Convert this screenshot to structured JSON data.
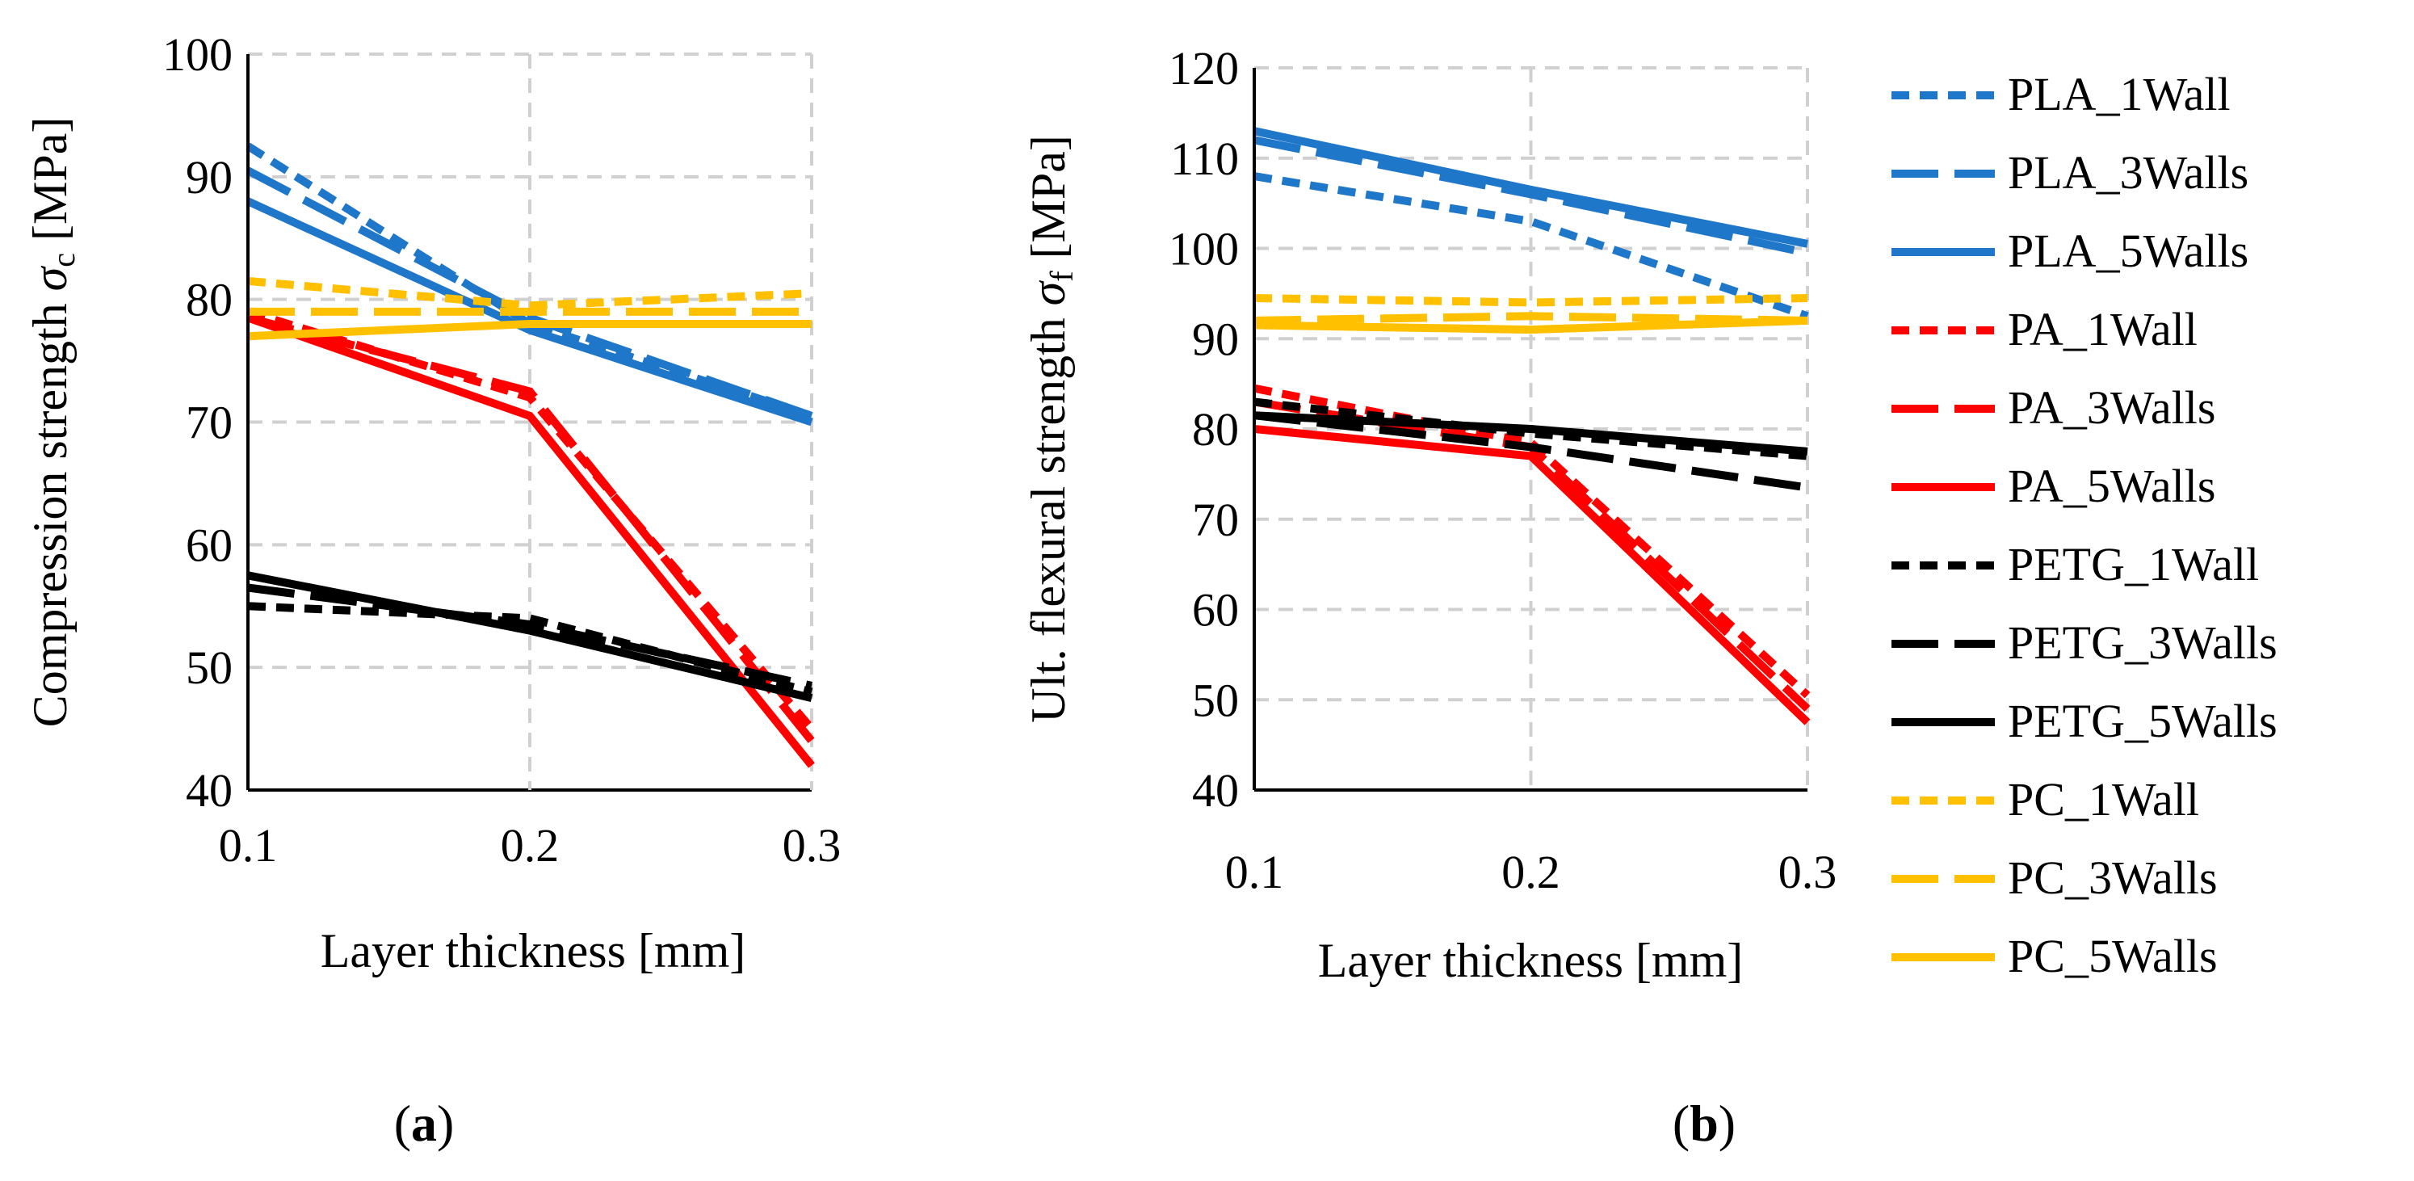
{
  "styles": {
    "series": {
      "PLA_1Wall": {
        "color": "#1f77c9",
        "dash": "short"
      },
      "PLA_3Walls": {
        "color": "#1f77c9",
        "dash": "long"
      },
      "PLA_5Walls": {
        "color": "#1f77c9",
        "dash": "solid"
      },
      "PA_1Wall": {
        "color": "#ff0000",
        "dash": "short"
      },
      "PA_3Walls": {
        "color": "#ff0000",
        "dash": "long"
      },
      "PA_5Walls": {
        "color": "#ff0000",
        "dash": "solid"
      },
      "PETG_1Wall": {
        "color": "#000000",
        "dash": "short"
      },
      "PETG_3Walls": {
        "color": "#000000",
        "dash": "long"
      },
      "PETG_5Walls": {
        "color": "#000000",
        "dash": "solid"
      },
      "PC_1Wall": {
        "color": "#ffc000",
        "dash": "short"
      },
      "PC_3Walls": {
        "color": "#ffc000",
        "dash": "long"
      },
      "PC_5Walls": {
        "color": "#ffc000",
        "dash": "solid"
      }
    }
  },
  "legend": {
    "entries": [
      "PLA_1Wall",
      "PLA_3Walls",
      "PLA_5Walls",
      "PA_1Wall",
      "PA_3Walls",
      "PA_5Walls",
      "PETG_1Wall",
      "PETG_3Walls",
      "PETG_5Walls",
      "PC_1Wall",
      "PC_3Walls",
      "PC_5Walls"
    ]
  },
  "chart_data": [
    {
      "type": "line",
      "panel_label": {
        "open": "(",
        "letter": "a",
        "close": ")"
      },
      "xlabel": "Layer thickness [mm]",
      "ylabel": {
        "prefix": "Compression strength ",
        "symbol": "σ",
        "sub": "c",
        "suffix": " [MPa]"
      },
      "x": [
        0.1,
        0.2,
        0.3
      ],
      "xticks": [
        "0.1",
        "0.2",
        "0.3"
      ],
      "ylim": [
        40,
        100
      ],
      "yticks": [
        40,
        50,
        60,
        70,
        80,
        90,
        100
      ],
      "grid": true,
      "series": [
        {
          "name": "PLA_1Wall",
          "values": [
            92.5,
            78.0,
            70.5
          ]
        },
        {
          "name": "PLA_3Walls",
          "values": [
            90.5,
            78.5,
            70.5
          ]
        },
        {
          "name": "PLA_5Walls",
          "values": [
            88.0,
            77.5,
            70.0
          ]
        },
        {
          "name": "PA_1Wall",
          "values": [
            79.0,
            72.0,
            45.0
          ]
        },
        {
          "name": "PA_3Walls",
          "values": [
            78.5,
            72.5,
            44.0
          ]
        },
        {
          "name": "PA_5Walls",
          "values": [
            78.5,
            70.5,
            42.0
          ]
        },
        {
          "name": "PETG_1Wall",
          "values": [
            55.0,
            54.0,
            48.0
          ]
        },
        {
          "name": "PETG_3Walls",
          "values": [
            56.5,
            53.5,
            48.5
          ]
        },
        {
          "name": "PETG_5Walls",
          "values": [
            57.5,
            53.0,
            47.5
          ]
        },
        {
          "name": "PC_1Wall",
          "values": [
            81.5,
            79.5,
            80.5
          ]
        },
        {
          "name": "PC_3Walls",
          "values": [
            79.0,
            79.0,
            79.0
          ]
        },
        {
          "name": "PC_5Walls",
          "values": [
            77.0,
            78.0,
            78.0
          ]
        }
      ]
    },
    {
      "type": "line",
      "panel_label": {
        "open": "(",
        "letter": "b",
        "close": ")"
      },
      "xlabel": "Layer thickness [mm]",
      "ylabel": {
        "prefix": "Ult. flexural strength ",
        "symbol": "σ",
        "sub": "f",
        "suffix": " [MPa]"
      },
      "x": [
        0.1,
        0.2,
        0.3
      ],
      "xticks": [
        "0.1",
        "0.2",
        "0.3"
      ],
      "ylim": [
        40,
        120
      ],
      "yticks": [
        40,
        50,
        60,
        70,
        80,
        90,
        100,
        110,
        120
      ],
      "grid": true,
      "series": [
        {
          "name": "PLA_1Wall",
          "values": [
            108.0,
            103.0,
            92.5
          ]
        },
        {
          "name": "PLA_3Walls",
          "values": [
            112.0,
            106.0,
            99.5
          ]
        },
        {
          "name": "PLA_5Walls",
          "values": [
            113.0,
            106.5,
            100.5
          ]
        },
        {
          "name": "PA_1Wall",
          "values": [
            84.5,
            78.5,
            50.5
          ]
        },
        {
          "name": "PA_3Walls",
          "values": [
            83.0,
            78.0,
            49.0
          ]
        },
        {
          "name": "PA_5Walls",
          "values": [
            80.0,
            77.0,
            47.5
          ]
        },
        {
          "name": "PETG_1Wall",
          "values": [
            83.0,
            79.5,
            77.0
          ]
        },
        {
          "name": "PETG_3Walls",
          "values": [
            81.5,
            78.0,
            73.5
          ]
        },
        {
          "name": "PETG_5Walls",
          "values": [
            81.5,
            80.0,
            77.5
          ]
        },
        {
          "name": "PC_1Wall",
          "values": [
            94.5,
            94.0,
            94.5
          ]
        },
        {
          "name": "PC_3Walls",
          "values": [
            92.0,
            92.5,
            92.0
          ]
        },
        {
          "name": "PC_5Walls",
          "values": [
            91.5,
            91.0,
            92.0
          ]
        }
      ]
    }
  ]
}
